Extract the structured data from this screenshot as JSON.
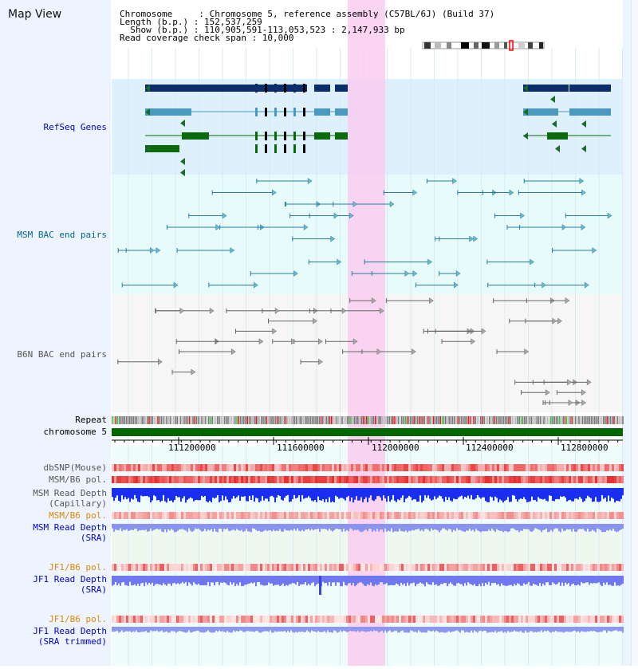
{
  "title": "Map View",
  "header": {
    "line1": "Chromosome     : Chromosome 5, reference assembly (C57BL/6J) (Build 37)",
    "line2": "Length (b.p.) : 152,537,259",
    "line3": "  Show (b.p.) : 110,905,591-113,053,523 : 2,147,933 bp",
    "line4": "Read coverage check span : 10,000"
  },
  "tracks": {
    "refseq": "RefSeq Genes",
    "msm_bac": "MSM BAC end pairs",
    "b6n_bac": "B6N BAC end pairs",
    "repeat": "Repeat",
    "chromosome": "chromosome 5",
    "dbsnp": "dbSNP(Mouse)",
    "msm_b6_pol": "MSM/B6 pol.",
    "msm_depth_cap_1": "MSM Read Depth",
    "msm_depth_cap_2": "(Capillary)",
    "msm_b6_pol_2": "MSM/B6 pol.",
    "msm_depth_sra_1": "MSM Read Depth",
    "msm_depth_sra_2": "(SRA)",
    "jf1_b6_pol": "JF1/B6 pol.",
    "jf1_depth_sra_1": "JF1 Read Depth",
    "jf1_depth_sra_2": "(SRA)",
    "jf1_b6_pol_2": "JF1/B6 pol.",
    "jf1_depth_trim_1": "JF1 Read Depth",
    "jf1_depth_trim_2": "(SRA trimmed)"
  },
  "axis_ticks": [
    "111200000",
    "111600000",
    "112000000",
    "112400000",
    "112800000"
  ],
  "colors": {
    "label_blue": "#0000cc",
    "label_teal": "#006688",
    "label_gray": "#555555",
    "label_orange": "#dd8800",
    "highlight": "#f9ccee",
    "refseq_bg": "#ddf0fb",
    "msm_bg": "#e8fbfb",
    "chromosome_bar": "#006600"
  },
  "ideogram": {
    "selected_region": "red-box-icon"
  }
}
